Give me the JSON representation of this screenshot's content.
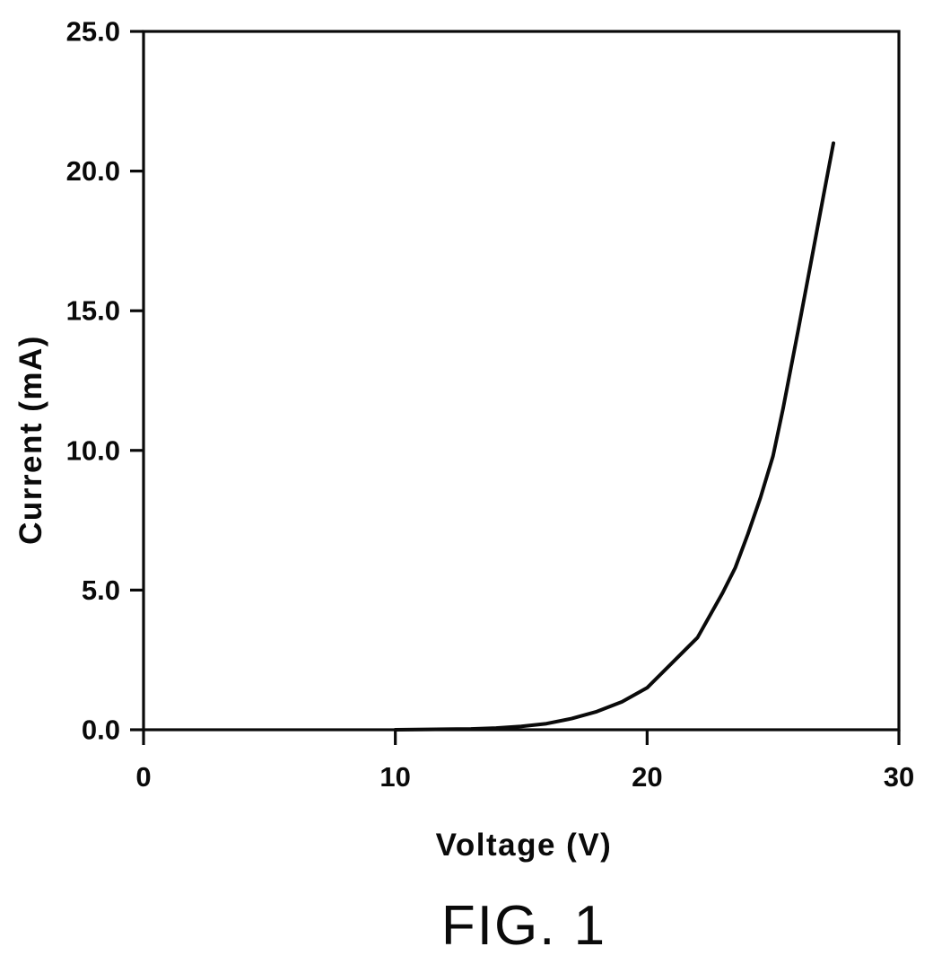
{
  "figure": {
    "caption": "FIG. 1"
  },
  "chart_data": {
    "type": "line",
    "title": "",
    "xlabel": "Voltage (V)",
    "ylabel": "Current (mA)",
    "xlim": [
      0,
      30
    ],
    "ylim": [
      0,
      25
    ],
    "x_ticks": {
      "values": [
        0,
        10,
        20,
        30
      ],
      "labels": [
        "0",
        "10",
        "20",
        "30"
      ]
    },
    "y_ticks": {
      "values": [
        0,
        5,
        10,
        15,
        20,
        25
      ],
      "labels": [
        "0.0",
        "5.0",
        "10.0",
        "15.0",
        "20.0",
        "25.0"
      ]
    },
    "grid": false,
    "frame": "box",
    "legend": "none",
    "colors": {
      "ink": "#0a0a0a",
      "background": "#ffffff"
    },
    "series": [
      {
        "name": "I-V characteristic",
        "x": [
          10,
          12,
          13,
          14,
          15,
          16,
          17,
          18,
          19,
          20,
          21,
          22,
          23,
          23.5,
          24,
          24.5,
          25,
          25.4,
          26,
          26.5,
          27,
          27.4
        ],
        "y": [
          0,
          0.02,
          0.03,
          0.06,
          0.12,
          0.22,
          0.4,
          0.65,
          1.0,
          1.5,
          2.4,
          3.3,
          4.9,
          5.8,
          7.0,
          8.3,
          9.8,
          11.5,
          14.3,
          16.7,
          19.1,
          21.0
        ]
      }
    ]
  }
}
